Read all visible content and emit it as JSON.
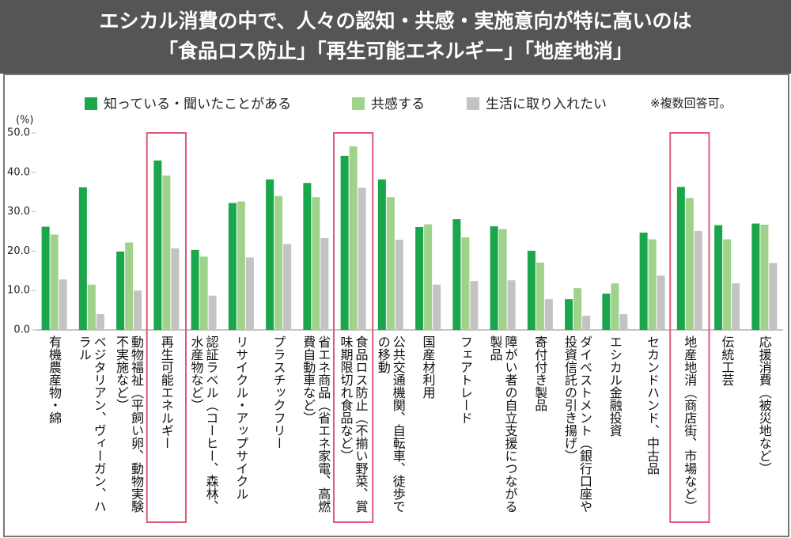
{
  "chart_data": {
    "type": "bar",
    "title": [
      "エシカル消費の中で、人々の認知・共感・実施意向が特に高いのは",
      "「食品ロス防止」「再生可能エネルギー」「地産地消」"
    ],
    "y_label": "(%)",
    "note": "※複数回答可。",
    "categories": [
      "有機農産物・綿",
      "ベジタリアン、ヴィーガン、ハラル",
      "動物福祉（平飼い卵、動物実験不実施など）",
      "再生可能エネルギー",
      "認証ラベル（コーヒー、森林、水産物など）",
      "リサイクル・アップサイクル",
      "プラスチックフリー",
      "省エネ商品（省エネ家電、高燃費自動車など）",
      "食品ロス防止（不揃い野菜、賞味期限切れ食品など）",
      "公共交通機関、自転車、徒歩での移動",
      "国産材利用",
      "フェアトレード",
      "障がい者の自立支援につながる製品",
      "寄付付き製品",
      "ダイベストメント（銀行口座や投資信託の引き揚げ）",
      "エシカル金融投資",
      "セカンドハンド、中古品",
      "地産地消（商店街、市場など）",
      "伝統工芸",
      "応援消費（被災地など）"
    ],
    "series": [
      {
        "name": "知っている・聞いたことがある",
        "color": "#1aa64a",
        "values": [
          26.2,
          36.2,
          19.9,
          43.0,
          20.3,
          32.2,
          38.2,
          37.3,
          44.2,
          38.2,
          26.1,
          28.1,
          26.3,
          20.1,
          7.8,
          9.2,
          24.7,
          36.3,
          26.6,
          27.0
        ]
      },
      {
        "name": "共感する",
        "color": "#9fd28b",
        "values": [
          24.2,
          11.5,
          22.2,
          39.2,
          18.6,
          32.6,
          34.0,
          33.7,
          46.6,
          33.7,
          26.8,
          23.5,
          25.6,
          17.1,
          10.6,
          11.8,
          23.0,
          33.5,
          23.0,
          26.7
        ]
      },
      {
        "name": "生活に取り入れたい",
        "color": "#c3c3c3",
        "values": [
          12.8,
          4.0,
          10.0,
          20.7,
          8.7,
          18.4,
          21.8,
          23.3,
          36.1,
          22.9,
          11.5,
          12.4,
          12.6,
          7.8,
          3.6,
          4.0,
          13.8,
          25.1,
          11.8,
          17.0
        ]
      }
    ],
    "highlight": [
      3,
      8,
      17
    ],
    "highlight_color": "#e05a78",
    "ylim": [
      0,
      50
    ],
    "yticks": [
      {
        "value": 0,
        "label": "0.0"
      },
      {
        "value": 10,
        "label": "10.0"
      },
      {
        "value": 20,
        "label": "20.0"
      },
      {
        "value": 30,
        "label": "30.0"
      },
      {
        "value": 40,
        "label": "40.0"
      },
      {
        "value": 50,
        "label": "50.0"
      }
    ],
    "grid": false
  }
}
